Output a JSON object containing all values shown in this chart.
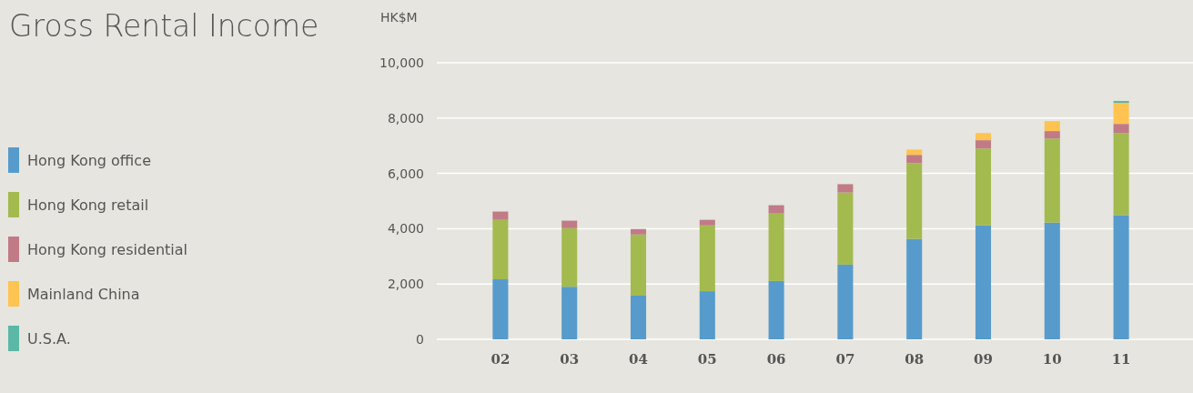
{
  "chart_data": {
    "type": "bar",
    "title": "Gross Rental Income",
    "ylabel": "HK$M",
    "stacked": true,
    "legend": "left",
    "grid": "y",
    "categories": [
      "02",
      "03",
      "04",
      "05",
      "06",
      "07",
      "08",
      "09",
      "10",
      "11"
    ],
    "ylim": [
      0,
      10000
    ],
    "yticks": [
      {
        "value": 0,
        "label": "0"
      },
      {
        "value": 2000,
        "label": "2,000"
      },
      {
        "value": 4000,
        "label": "4,000"
      },
      {
        "value": 6000,
        "label": "6,000"
      },
      {
        "value": 8000,
        "label": "8,000"
      },
      {
        "value": 10000,
        "label": "10,000"
      }
    ],
    "series": [
      {
        "name": "Hong Kong office",
        "color": "#569bcc",
        "values": [
          2170,
          1900,
          1580,
          1740,
          2110,
          2700,
          3630,
          4120,
          4220,
          4490
        ]
      },
      {
        "name": "Hong Kong retail",
        "color": "#a3ba4f",
        "values": [
          2150,
          2120,
          2210,
          2380,
          2440,
          2610,
          2740,
          2780,
          3040,
          2970
        ]
      },
      {
        "name": "Hong Kong residential",
        "color": "#c07b87",
        "values": [
          300,
          270,
          200,
          200,
          300,
          300,
          300,
          300,
          270,
          330
        ]
      },
      {
        "name": "Mainland China",
        "color": "#fec350",
        "values": [
          0,
          0,
          0,
          0,
          0,
          0,
          190,
          260,
          360,
          760
        ]
      },
      {
        "name": "U.S.A.",
        "color": "#5bb8a6",
        "values": [
          0,
          0,
          0,
          0,
          0,
          0,
          0,
          0,
          0,
          70
        ]
      }
    ]
  }
}
